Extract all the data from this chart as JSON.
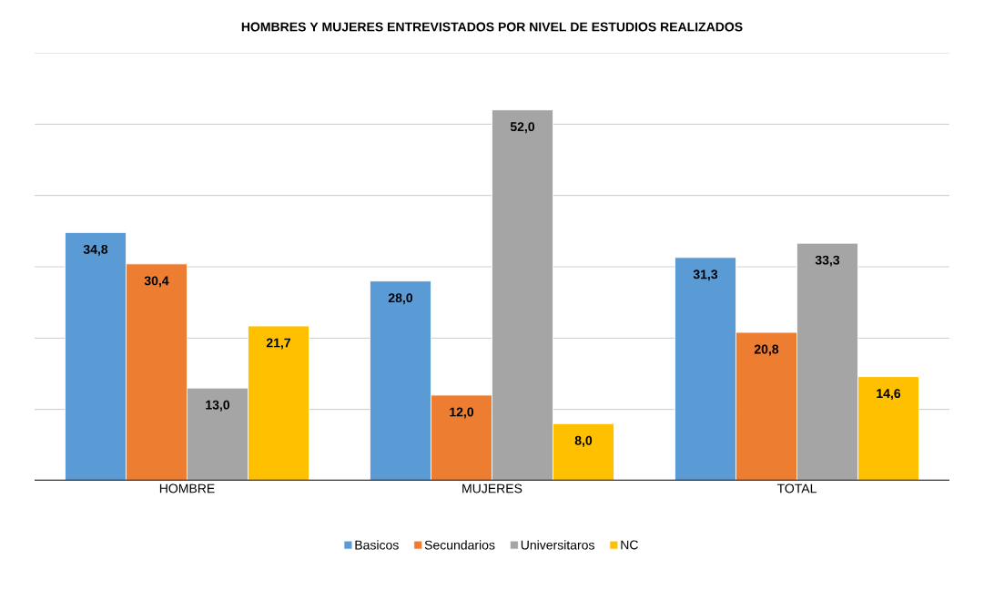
{
  "chart_data": {
    "type": "bar",
    "title": "HOMBRES Y MUJERES ENTREVISTADOS POR NIVEL DE ESTUDIOS REALIZADOS",
    "categories": [
      "HOMBRE",
      "MUJERES",
      "TOTAL"
    ],
    "series": [
      {
        "name": "Basicos",
        "color": "#5b9bd5",
        "values": [
          34.8,
          28.0,
          31.3
        ],
        "value_labels": [
          "34,8",
          "28,0",
          "31,3"
        ]
      },
      {
        "name": "Secundarios",
        "color": "#ed7d31",
        "values": [
          30.4,
          12.0,
          20.8
        ],
        "value_labels": [
          "30,4",
          "12,0",
          "20,8"
        ]
      },
      {
        "name": "Universitaros",
        "color": "#a5a5a5",
        "values": [
          13.0,
          52.0,
          33.3
        ],
        "value_labels": [
          "13,0",
          "52,0",
          "33,3"
        ]
      },
      {
        "name": "NC",
        "color": "#ffc000",
        "values": [
          21.7,
          8.0,
          14.6
        ],
        "value_labels": [
          "21,7",
          "8,0",
          "14,6"
        ]
      }
    ],
    "ylim": [
      0,
      60
    ],
    "yticks": [
      {
        "value": 0,
        "label": null
      },
      {
        "value": 10,
        "label": null
      },
      {
        "value": 20,
        "label": null
      },
      {
        "value": 30,
        "label": null
      },
      {
        "value": 40,
        "label": null
      },
      {
        "value": 50,
        "label": null
      },
      {
        "value": 60,
        "label": null
      }
    ],
    "tick_labels": "x",
    "grid": "y",
    "legend": "bottom"
  }
}
